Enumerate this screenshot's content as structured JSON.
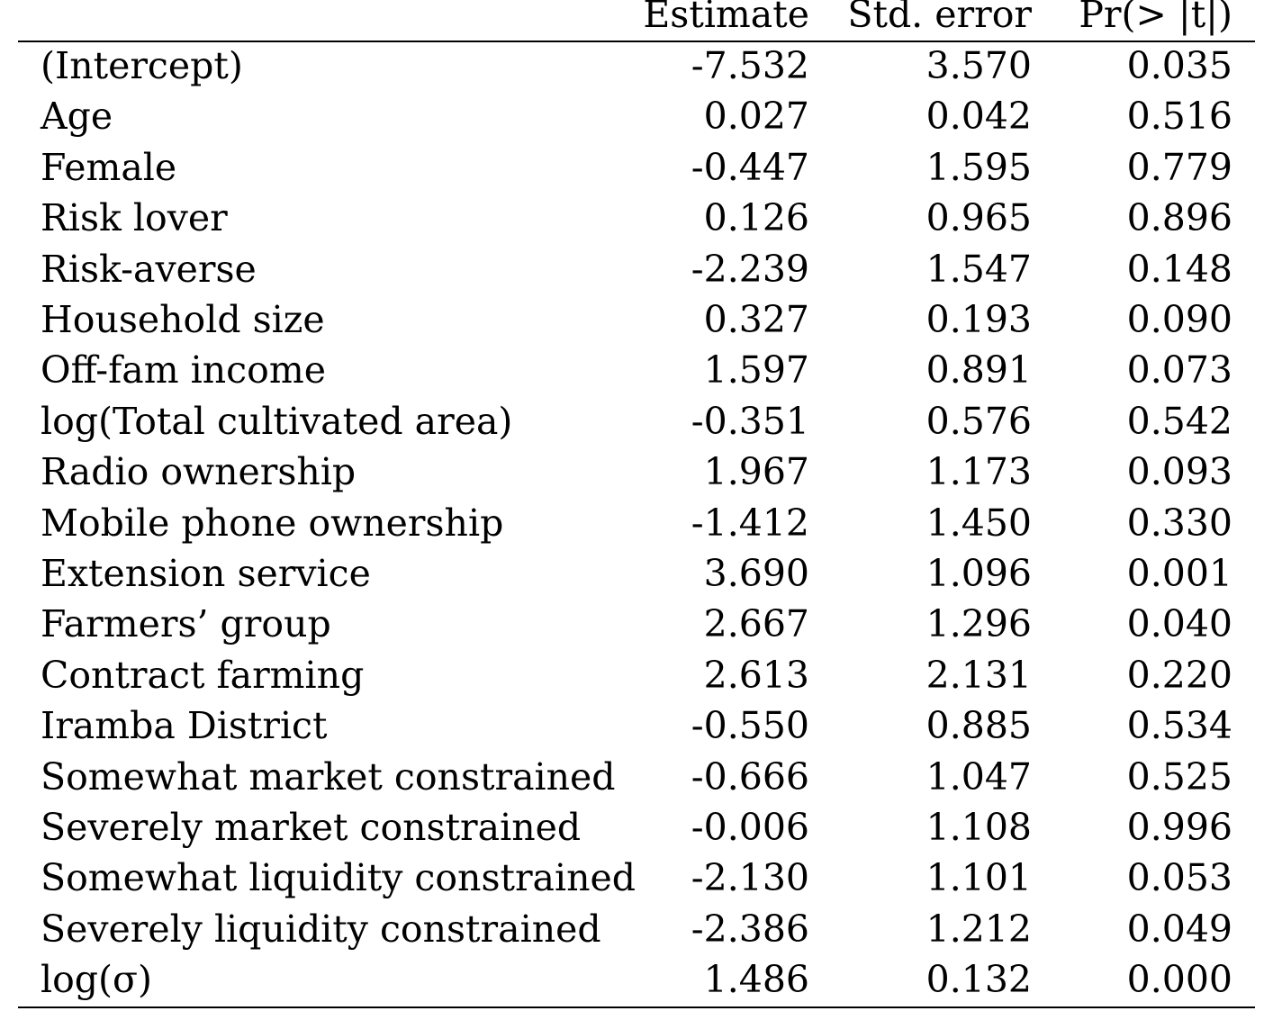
{
  "table": {
    "headers": {
      "estimate": "Estimate",
      "std_error": "Std. error",
      "p_value": "Pr(> |t|)"
    },
    "rows": [
      {
        "variable": "(Intercept)",
        "estimate": "-7.532",
        "std_error": "3.570",
        "p_value": "0.035"
      },
      {
        "variable": "Age",
        "estimate": "0.027",
        "std_error": "0.042",
        "p_value": "0.516"
      },
      {
        "variable": "Female",
        "estimate": "-0.447",
        "std_error": "1.595",
        "p_value": "0.779"
      },
      {
        "variable": "Risk lover",
        "estimate": "0.126",
        "std_error": "0.965",
        "p_value": "0.896"
      },
      {
        "variable": "Risk-averse",
        "estimate": "-2.239",
        "std_error": "1.547",
        "p_value": "0.148"
      },
      {
        "variable": "Household size",
        "estimate": "0.327",
        "std_error": "0.193",
        "p_value": "0.090"
      },
      {
        "variable": "Off-fam income",
        "estimate": "1.597",
        "std_error": "0.891",
        "p_value": "0.073"
      },
      {
        "variable": "log(Total cultivated area)",
        "estimate": "-0.351",
        "std_error": "0.576",
        "p_value": "0.542"
      },
      {
        "variable": "Radio ownership",
        "estimate": "1.967",
        "std_error": "1.173",
        "p_value": "0.093"
      },
      {
        "variable": "Mobile phone ownership",
        "estimate": "-1.412",
        "std_error": "1.450",
        "p_value": "0.330"
      },
      {
        "variable": "Extension service",
        "estimate": "3.690",
        "std_error": "1.096",
        "p_value": "0.001"
      },
      {
        "variable": "Farmers’ group",
        "estimate": "2.667",
        "std_error": "1.296",
        "p_value": "0.040"
      },
      {
        "variable": "Contract farming",
        "estimate": "2.613",
        "std_error": "2.131",
        "p_value": "0.220"
      },
      {
        "variable": "Iramba District",
        "estimate": "-0.550",
        "std_error": "0.885",
        "p_value": "0.534"
      },
      {
        "variable": "Somewhat market constrained",
        "estimate": "-0.666",
        "std_error": "1.047",
        "p_value": "0.525"
      },
      {
        "variable": "Severely market constrained",
        "estimate": "-0.006",
        "std_error": "1.108",
        "p_value": "0.996"
      },
      {
        "variable": "Somewhat liquidity constrained",
        "estimate": "-2.130",
        "std_error": "1.101",
        "p_value": "0.053"
      },
      {
        "variable": "Severely liquidity constrained",
        "estimate": "-2.386",
        "std_error": "1.212",
        "p_value": "0.049"
      },
      {
        "variable": "log(σ)",
        "estimate": "1.486",
        "std_error": "0.132",
        "p_value": "0.000"
      }
    ]
  }
}
